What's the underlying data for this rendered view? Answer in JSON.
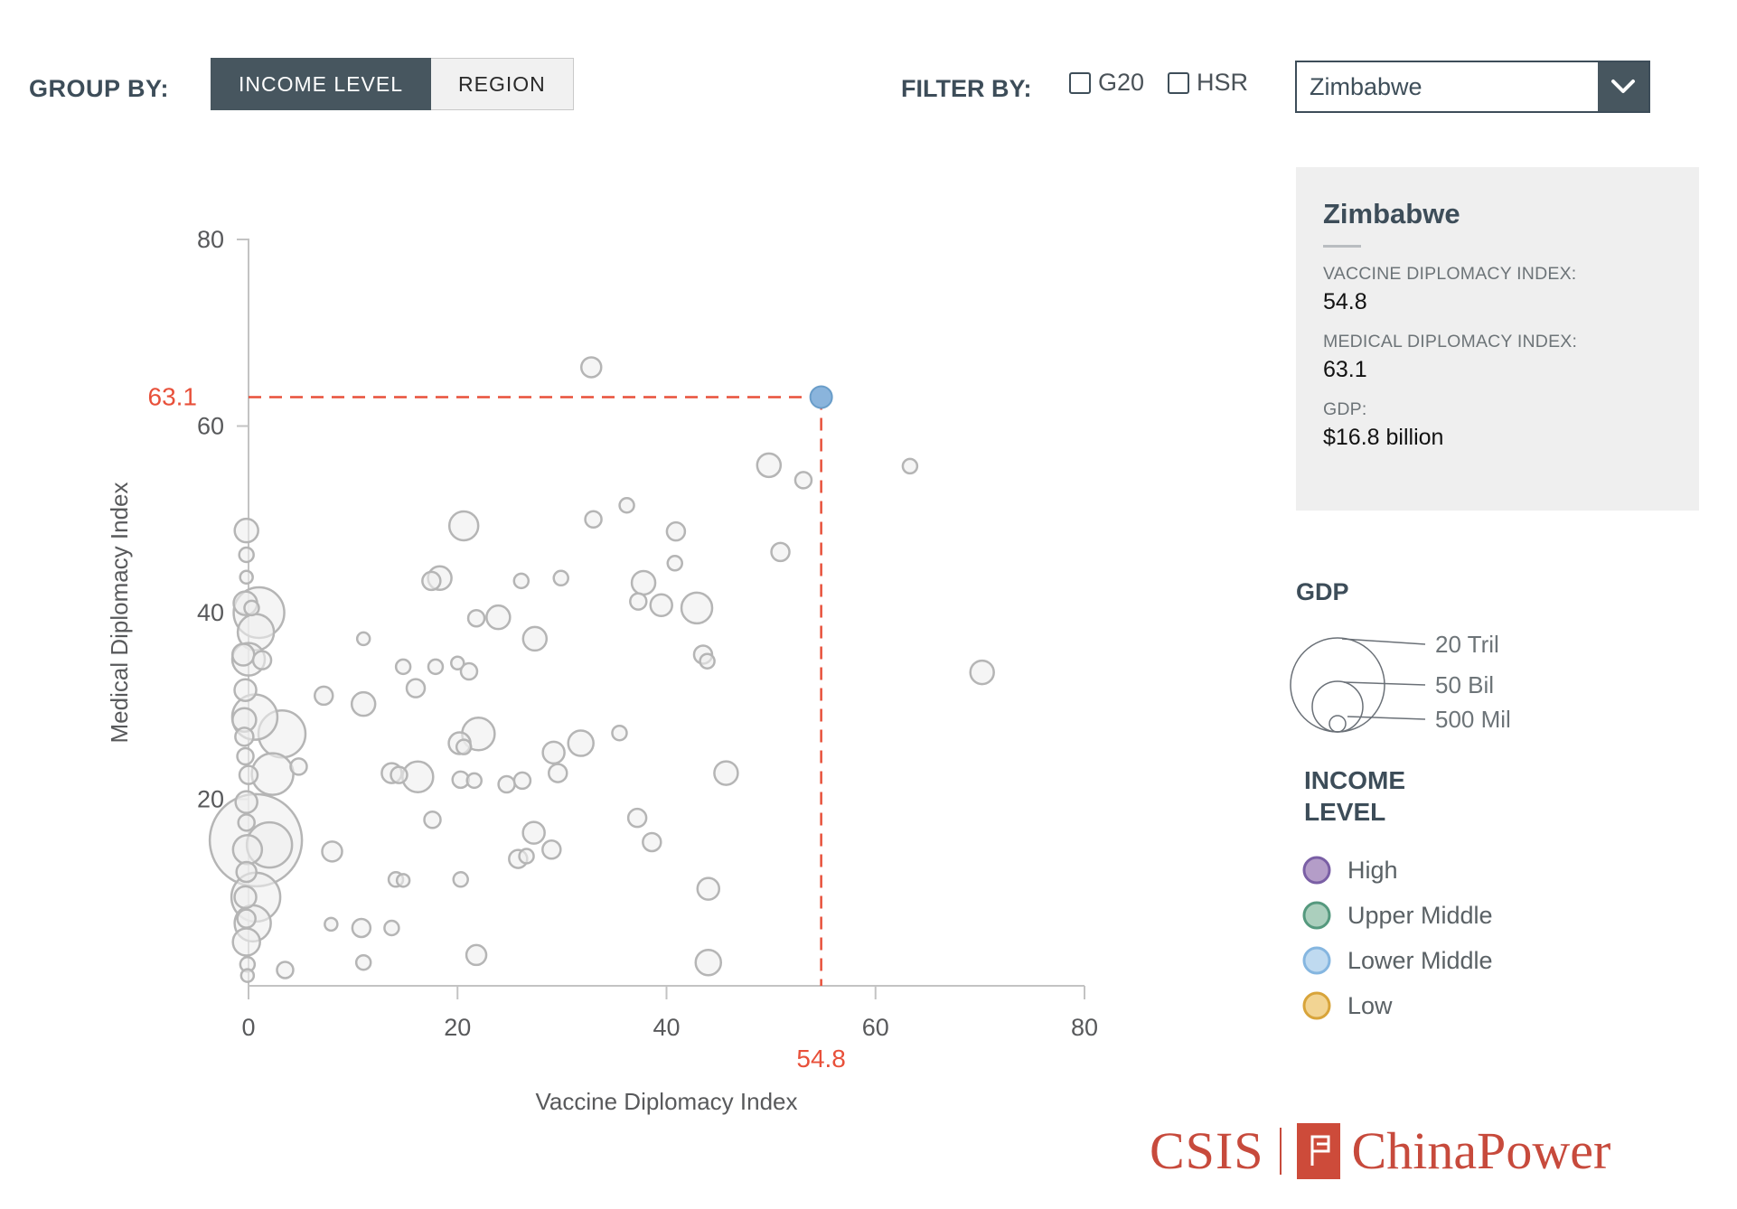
{
  "controls": {
    "group_by_label": "GROUP BY:",
    "group_by_options": [
      {
        "label": "INCOME LEVEL",
        "active": true
      },
      {
        "label": "REGION",
        "active": false
      }
    ],
    "filter_by_label": "FILTER BY:",
    "filters": [
      {
        "label": "G20",
        "checked": false
      },
      {
        "label": "HSR",
        "checked": false
      }
    ],
    "country_select": {
      "value": "Zimbabwe"
    }
  },
  "info_panel": {
    "title": "Zimbabwe",
    "fields": [
      {
        "label": "VACCINE DIPLOMACY INDEX:",
        "value": "54.8"
      },
      {
        "label": "MEDICAL DIPLOMACY INDEX:",
        "value": "63.1"
      },
      {
        "label": "GDP:",
        "value": "$16.8 billion"
      }
    ]
  },
  "gdp_legend": {
    "title": "GDP",
    "sizes": [
      {
        "label": "20 Tril",
        "r": 52
      },
      {
        "label": "50 Bil",
        "r": 28
      },
      {
        "label": "500 Mil",
        "r": 9
      }
    ]
  },
  "income_legend": {
    "title_lines": [
      "INCOME",
      "LEVEL"
    ],
    "items": [
      {
        "label": "High",
        "fill": "#b49dc8",
        "stroke": "#7a5fa5"
      },
      {
        "label": "Upper Middle",
        "fill": "#abcfbd",
        "stroke": "#55997e"
      },
      {
        "label": "Lower Middle",
        "fill": "#bfdaf0",
        "stroke": "#85b6e0"
      },
      {
        "label": "Low",
        "fill": "#f2d493",
        "stroke": "#d8a43a"
      }
    ]
  },
  "logo": {
    "csis": "CSIS",
    "chinapower": "ChinaPower",
    "color": "#c74a3c",
    "mark_color": "#cd4b3a"
  },
  "chart_data": {
    "type": "scatter",
    "title": "",
    "xlabel": "Vaccine Diplomacy Index",
    "ylabel": "Medical Diplomacy Index",
    "xlim": [
      0,
      80
    ],
    "ylim": [
      0,
      80
    ],
    "xticks": [
      0,
      20,
      40,
      60,
      80
    ],
    "yticks": [
      20,
      40,
      60,
      80
    ],
    "grid": false,
    "legend_position": "right",
    "axis_color": "#c3c3c3",
    "tick_label_color": "#58595b",
    "bubble_style": {
      "fill": "#efefef",
      "fill_opacity": 0.6,
      "stroke": "#b5b5b5",
      "stroke_width": 2.5
    },
    "highlight": {
      "name": "Zimbabwe",
      "x": 54.8,
      "y": 63.1,
      "x_label": "54.8",
      "y_label": "63.1",
      "dot_fill": "#8ab4dc",
      "dot_stroke": "#699dc9",
      "dot_r": 12,
      "line_color": "#e8503a"
    },
    "bubbles": [
      [
        32.8,
        66.3,
        11
      ],
      [
        49.8,
        55.8,
        13
      ],
      [
        53.1,
        54.2,
        9
      ],
      [
        63.3,
        55.7,
        8
      ],
      [
        -0.2,
        48.8,
        13
      ],
      [
        20.6,
        49.3,
        16
      ],
      [
        33.0,
        50.0,
        9
      ],
      [
        36.2,
        51.5,
        8
      ],
      [
        40.9,
        48.7,
        10
      ],
      [
        -0.2,
        46.2,
        8
      ],
      [
        17.5,
        43.4,
        10
      ],
      [
        18.3,
        43.7,
        13
      ],
      [
        26.1,
        43.4,
        8
      ],
      [
        29.9,
        43.7,
        8
      ],
      [
        37.8,
        43.2,
        13
      ],
      [
        40.8,
        45.3,
        8
      ],
      [
        50.9,
        46.5,
        10
      ],
      [
        -0.2,
        43.8,
        7
      ],
      [
        -0.3,
        41.0,
        13
      ],
      [
        1.0,
        40.0,
        28
      ],
      [
        0.3,
        40.5,
        8
      ],
      [
        0.7,
        37.9,
        20
      ],
      [
        42.9,
        40.5,
        17
      ],
      [
        39.5,
        40.8,
        12
      ],
      [
        37.3,
        41.2,
        9
      ],
      [
        21.8,
        39.4,
        9
      ],
      [
        23.9,
        39.5,
        13
      ],
      [
        11.0,
        37.2,
        7
      ],
      [
        27.4,
        37.2,
        13
      ],
      [
        0.0,
        35.0,
        18
      ],
      [
        -0.5,
        35.5,
        12
      ],
      [
        1.3,
        34.9,
        10
      ],
      [
        14.8,
        34.2,
        8
      ],
      [
        16.0,
        31.9,
        10
      ],
      [
        17.9,
        34.2,
        8
      ],
      [
        20.0,
        34.6,
        7
      ],
      [
        21.1,
        33.7,
        9
      ],
      [
        43.5,
        35.5,
        10
      ],
      [
        43.9,
        34.8,
        8
      ],
      [
        70.2,
        33.6,
        13
      ],
      [
        7.2,
        31.1,
        10
      ],
      [
        11.0,
        30.2,
        13
      ],
      [
        -0.3,
        31.7,
        12
      ],
      [
        0.6,
        28.8,
        25
      ],
      [
        31.8,
        26.0,
        14
      ],
      [
        35.5,
        27.1,
        8
      ],
      [
        45.7,
        22.8,
        13
      ],
      [
        3.2,
        27.0,
        26
      ],
      [
        -0.4,
        28.5,
        13
      ],
      [
        -0.4,
        26.7,
        10
      ],
      [
        -0.3,
        24.6,
        9
      ],
      [
        0.0,
        22.6,
        10
      ],
      [
        2.3,
        22.7,
        23
      ],
      [
        4.8,
        23.5,
        9
      ],
      [
        13.7,
        22.8,
        11
      ],
      [
        14.4,
        22.6,
        9
      ],
      [
        16.2,
        22.4,
        17
      ],
      [
        20.2,
        26.0,
        12
      ],
      [
        20.6,
        25.6,
        8
      ],
      [
        22.0,
        27.0,
        18
      ],
      [
        20.3,
        22.1,
        9
      ],
      [
        21.6,
        22.0,
        8
      ],
      [
        24.7,
        21.6,
        9
      ],
      [
        26.2,
        22.0,
        9
      ],
      [
        29.2,
        25.0,
        12
      ],
      [
        29.6,
        22.8,
        10
      ],
      [
        37.2,
        18.0,
        10
      ],
      [
        38.6,
        15.4,
        10
      ],
      [
        0.7,
        15.6,
        51
      ],
      [
        -0.2,
        19.7,
        12
      ],
      [
        -0.2,
        17.5,
        9
      ],
      [
        2.0,
        15.1,
        25
      ],
      [
        -0.1,
        14.6,
        16
      ],
      [
        8.0,
        14.4,
        11
      ],
      [
        17.6,
        17.8,
        9
      ],
      [
        27.3,
        16.4,
        12
      ],
      [
        25.8,
        13.6,
        10
      ],
      [
        26.6,
        13.9,
        8
      ],
      [
        29.0,
        14.6,
        10
      ],
      [
        14.1,
        11.4,
        8
      ],
      [
        14.8,
        11.3,
        7
      ],
      [
        20.3,
        11.4,
        8
      ],
      [
        44.0,
        10.4,
        12
      ],
      [
        -0.2,
        12.2,
        11
      ],
      [
        0.7,
        9.5,
        27
      ],
      [
        -0.3,
        9.5,
        12
      ],
      [
        0.4,
        6.7,
        20
      ],
      [
        -0.2,
        7.2,
        10
      ],
      [
        -0.2,
        4.7,
        15
      ],
      [
        -0.1,
        2.3,
        8
      ],
      [
        -0.1,
        1.1,
        7
      ],
      [
        3.5,
        1.7,
        9
      ],
      [
        7.9,
        6.6,
        7
      ],
      [
        10.8,
        6.2,
        10
      ],
      [
        13.7,
        6.2,
        8
      ],
      [
        11.0,
        2.5,
        8
      ],
      [
        21.8,
        3.3,
        11
      ],
      [
        44.0,
        2.5,
        14
      ]
    ]
  }
}
